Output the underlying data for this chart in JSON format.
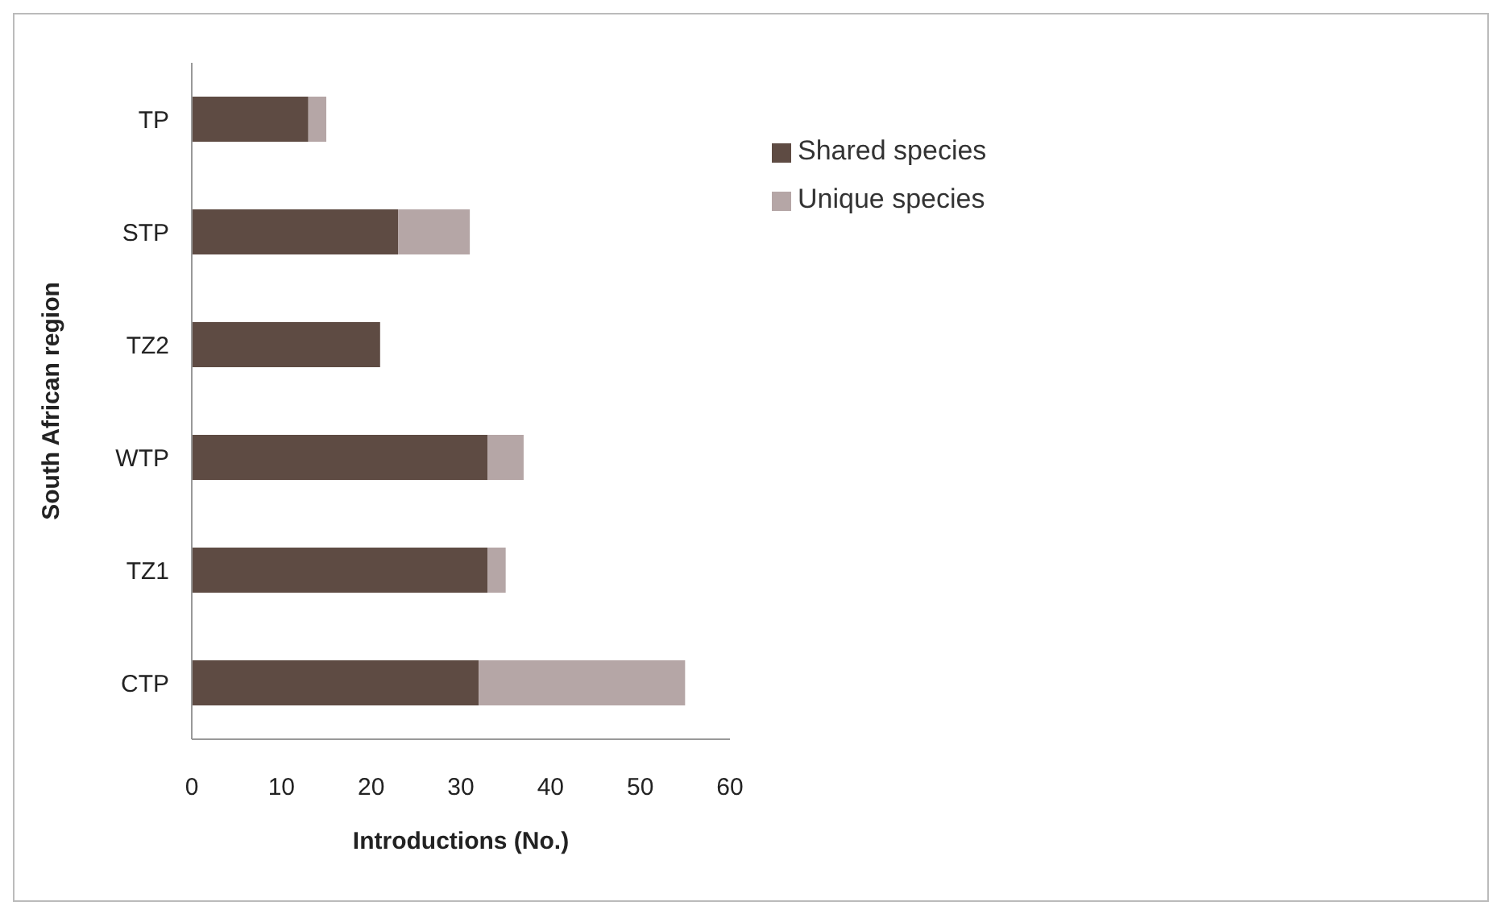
{
  "chart_data": {
    "type": "bar",
    "orientation": "horizontal",
    "stacked": true,
    "xlabel": "Introductions (No.)",
    "ylabel": "South African region",
    "categories": [
      "TP",
      "STP",
      "TZ2",
      "WTP",
      "TZ1",
      "CTP"
    ],
    "series": [
      {
        "name": "Shared species",
        "color": "#5e4b43",
        "values": [
          13,
          23,
          21,
          33,
          33,
          32
        ]
      },
      {
        "name": "Unique species",
        "color": "#b5a6a6",
        "values": [
          2,
          8,
          0,
          4,
          2,
          23
        ]
      }
    ],
    "xlim": [
      0,
      60
    ],
    "xticks": [
      0,
      10,
      20,
      30,
      40,
      50,
      60
    ],
    "grid": false,
    "legend": "top right"
  }
}
